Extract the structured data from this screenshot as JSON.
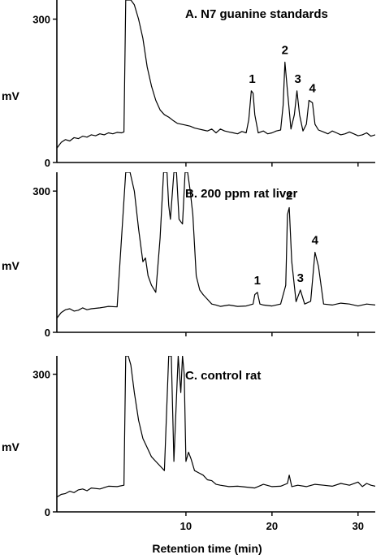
{
  "chart_data": [
    {
      "type": "line",
      "panel": "A",
      "title": "A.   N7 guanine standards",
      "ylabel": "mV",
      "ylim": [
        0,
        340
      ],
      "yticks": [
        0,
        300
      ],
      "xlim": [
        -5,
        32
      ],
      "xticks": [
        10,
        20,
        30
      ],
      "peak_labels": [
        {
          "label": "1",
          "x": 17.7
        },
        {
          "label": "2",
          "x": 21.5
        },
        {
          "label": "3",
          "x": 23.0
        },
        {
          "label": "4",
          "x": 24.7
        }
      ],
      "series": [
        {
          "x": [
            -5,
            -4.5,
            -4,
            -3.5,
            -3,
            -2.5,
            -2,
            -1.5,
            -1,
            -0.5,
            0,
            0.5,
            1,
            1.5,
            2,
            2.5,
            2.8,
            3.0,
            3.3,
            3.6,
            4.0,
            4.5,
            5.0,
            5.5,
            6.0,
            6.5,
            7.0,
            7.5,
            8.0,
            8.5,
            9,
            9.5,
            10,
            10.5,
            11,
            11.5,
            12,
            12.5,
            13,
            13.5,
            14,
            14.5,
            15,
            15.5,
            16,
            16.5,
            17,
            17.3,
            17.6,
            17.8,
            18.0,
            18.4,
            19,
            19.5,
            20,
            20.5,
            21,
            21.3,
            21.5,
            21.8,
            22.2,
            22.6,
            22.9,
            23.2,
            23.6,
            24.0,
            24.3,
            24.7,
            25.0,
            25.4,
            26,
            26.5,
            27,
            27.5,
            28,
            28.5,
            29,
            29.5,
            30,
            30.5,
            31,
            31.5,
            32
          ],
          "y": [
            30,
            42,
            48,
            45,
            52,
            50,
            55,
            53,
            58,
            56,
            60,
            58,
            62,
            60,
            63,
            62,
            64,
            340,
            340,
            340,
            330,
            300,
            260,
            200,
            160,
            130,
            110,
            100,
            95,
            88,
            82,
            80,
            78,
            76,
            72,
            70,
            68,
            66,
            70,
            62,
            70,
            66,
            64,
            62,
            60,
            65,
            62,
            90,
            150,
            145,
            100,
            62,
            66,
            60,
            62,
            66,
            68,
            120,
            210,
            150,
            70,
            100,
            150,
            100,
            66,
            80,
            130,
            125,
            80,
            68,
            64,
            60,
            66,
            62,
            58,
            60,
            64,
            60,
            56,
            58,
            62,
            55,
            58
          ]
        }
      ]
    },
    {
      "type": "line",
      "panel": "B",
      "title": "B.   200 ppm rat liver",
      "ylabel": "mV",
      "ylim": [
        0,
        340
      ],
      "yticks": [
        0,
        300
      ],
      "xlim": [
        -5,
        32
      ],
      "xticks": [
        10,
        20,
        30
      ],
      "peak_labels": [
        {
          "label": "1",
          "x": 18.3
        },
        {
          "label": "2",
          "x": 22.0
        },
        {
          "label": "3",
          "x": 23.3
        },
        {
          "label": "4",
          "x": 25.0
        }
      ],
      "series": [
        {
          "x": [
            -5,
            -4.5,
            -4,
            -3.5,
            -3,
            -2.5,
            -2,
            -1.5,
            -1,
            0,
            1,
            2,
            3,
            3.5,
            4,
            4.5,
            5,
            5.3,
            5.6,
            6.0,
            6.5,
            7.0,
            7.4,
            7.6,
            7.8,
            8.0,
            8.2,
            8.6,
            8.9,
            9.2,
            9.6,
            9.9,
            10.2,
            10.5,
            10.8,
            11.2,
            11.6,
            12,
            12.5,
            13,
            13.5,
            14,
            15,
            16,
            17,
            17.8,
            18.0,
            18.3,
            18.6,
            19,
            20,
            21,
            21.6,
            21.8,
            22.0,
            22.3,
            22.8,
            23.3,
            23.8,
            24.5,
            25.0,
            25.4,
            26,
            27,
            28,
            29,
            30,
            31,
            32
          ],
          "y": [
            30,
            42,
            48,
            50,
            45,
            47,
            52,
            48,
            50,
            52,
            55,
            54,
            340,
            340,
            300,
            220,
            150,
            158,
            120,
            100,
            85,
            200,
            340,
            340,
            340,
            270,
            240,
            340,
            340,
            240,
            230,
            340,
            340,
            300,
            250,
            120,
            90,
            80,
            70,
            60,
            58,
            55,
            58,
            55,
            56,
            60,
            80,
            85,
            60,
            58,
            56,
            60,
            100,
            250,
            265,
            150,
            65,
            90,
            60,
            66,
            170,
            140,
            60,
            58,
            62,
            60,
            56,
            60,
            58
          ]
        }
      ]
    },
    {
      "type": "line",
      "panel": "C",
      "title": "C.   control rat",
      "ylabel": "mV",
      "ylim": [
        0,
        340
      ],
      "yticks": [
        0,
        300
      ],
      "xlim": [
        -5,
        32
      ],
      "xticks": [
        10,
        20,
        30
      ],
      "xlabel": "Retention time (min)",
      "peak_labels": [],
      "series": [
        {
          "x": [
            -5,
            -4.5,
            -4,
            -3.5,
            -3,
            -2.5,
            -2,
            -1.5,
            -1,
            0,
            1,
            2,
            2.8,
            3.0,
            3.3,
            3.6,
            4.0,
            4.5,
            5,
            5.5,
            6,
            6.5,
            7,
            7.5,
            8.0,
            8.3,
            8.6,
            8.9,
            9.1,
            9.4,
            9.6,
            9.8,
            10.0,
            10.3,
            10.6,
            11,
            11.5,
            12,
            12.5,
            13,
            13.5,
            14,
            15,
            16,
            17,
            18,
            19,
            20,
            21,
            21.8,
            22.0,
            22.3,
            23,
            24,
            25,
            26,
            27,
            28,
            29,
            30,
            30.5,
            31,
            31.5,
            32
          ],
          "y": [
            32,
            38,
            40,
            45,
            42,
            48,
            50,
            46,
            52,
            50,
            56,
            55,
            58,
            340,
            340,
            320,
            260,
            200,
            160,
            140,
            120,
            110,
            100,
            90,
            340,
            340,
            110,
            250,
            340,
            260,
            340,
            300,
            110,
            130,
            115,
            90,
            85,
            80,
            70,
            68,
            60,
            58,
            55,
            56,
            54,
            52,
            60,
            55,
            56,
            62,
            80,
            55,
            58,
            55,
            60,
            58,
            56,
            62,
            58,
            65,
            55,
            62,
            58,
            56
          ]
        }
      ]
    }
  ]
}
